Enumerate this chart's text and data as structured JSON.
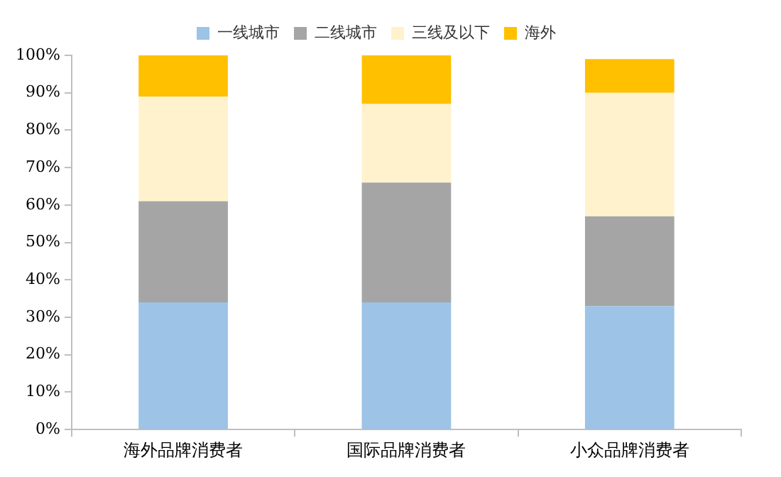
{
  "chart_data": {
    "type": "bar",
    "stacked": true,
    "categories": [
      "海外品牌消费者",
      "国际品牌消费者",
      "小众品牌消费者"
    ],
    "series": [
      {
        "name": "一线城市",
        "color": "#9dc3e6",
        "values": [
          34,
          34,
          33
        ]
      },
      {
        "name": "二线城市",
        "color": "#a5a5a5",
        "values": [
          27,
          32,
          24
        ]
      },
      {
        "name": "三线及以下",
        "color": "#fff2cc",
        "values": [
          28,
          21,
          33
        ]
      },
      {
        "name": "海外",
        "color": "#ffc000",
        "values": [
          11,
          13,
          9
        ]
      }
    ],
    "ylim": [
      0,
      100
    ],
    "yticks": [
      {
        "value": 0,
        "label": "0%"
      },
      {
        "value": 10,
        "label": "10%"
      },
      {
        "value": 20,
        "label": "20%"
      },
      {
        "value": 30,
        "label": "30%"
      },
      {
        "value": 40,
        "label": "40%"
      },
      {
        "value": 50,
        "label": "50%"
      },
      {
        "value": 60,
        "label": "60%"
      },
      {
        "value": 70,
        "label": "70%"
      },
      {
        "value": 80,
        "label": "80%"
      },
      {
        "value": 90,
        "label": "90%"
      },
      {
        "value": 100,
        "label": "100%"
      }
    ],
    "grid": false,
    "legend": "top"
  }
}
